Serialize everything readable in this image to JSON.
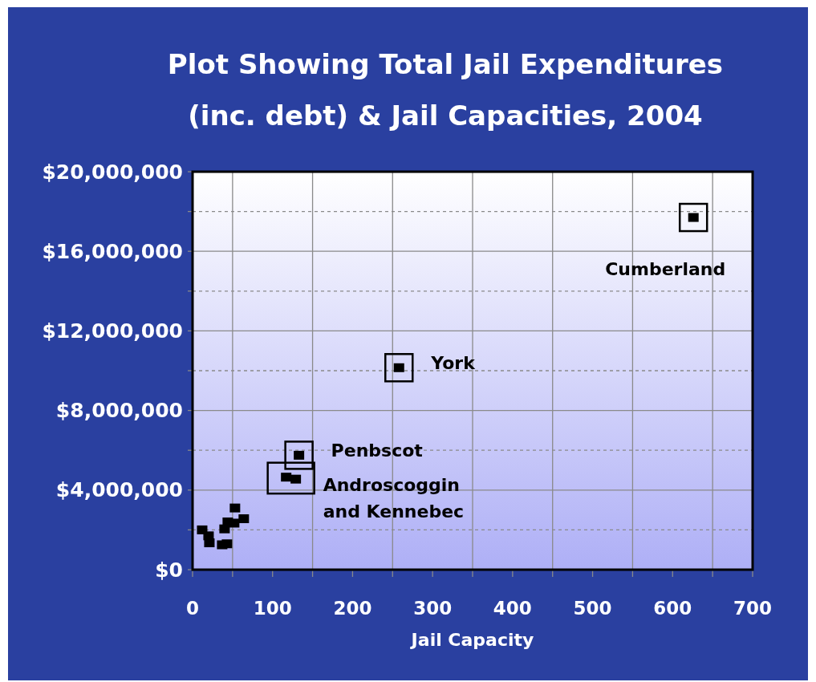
{
  "chart_data": {
    "type": "scatter",
    "title": "Plot Showing Total Jail Expenditures\n(inc. debt) & Jail Capacities, 2004",
    "xlabel": "Jail Capacity",
    "x": [
      12,
      20,
      21,
      37,
      40,
      43,
      44,
      52,
      53,
      64,
      117,
      129,
      133,
      258,
      626
    ],
    "values": [
      2000000,
      1700000,
      1350000,
      1250000,
      2050000,
      1300000,
      2400000,
      2340000,
      3100000,
      2560000,
      4650000,
      4550000,
      5750000,
      10150000,
      17700000
    ],
    "color": "#000000",
    "marker": "square",
    "xlim": [
      0,
      700
    ],
    "xticks": [
      0,
      {
        "value": 50,
        "label": null
      },
      100,
      {
        "value": 150,
        "label": null
      },
      200,
      {
        "value": 250,
        "label": null
      },
      300,
      {
        "value": 350,
        "label": null
      },
      400,
      {
        "value": 450,
        "label": null
      },
      500,
      {
        "value": 550,
        "label": null
      },
      600,
      {
        "value": 650,
        "label": null
      },
      700
    ],
    "ylim": [
      0,
      20000000
    ],
    "yticks": [
      {
        "value": 0,
        "label": "$0"
      },
      {
        "value": 2000000,
        "label": null
      },
      {
        "value": 4000000,
        "label": "$4,000,000"
      },
      {
        "value": 6000000,
        "label": null
      },
      {
        "value": 8000000,
        "label": "$8,000,000"
      },
      {
        "value": 10000000,
        "label": null
      },
      {
        "value": 12000000,
        "label": "$12,000,000"
      },
      {
        "value": 14000000,
        "label": null
      },
      {
        "value": 16000000,
        "label": "$16,000,000"
      },
      {
        "value": 18000000,
        "label": null
      },
      {
        "value": 20000000,
        "label": "$20,000,000"
      }
    ],
    "grid": true,
    "annotations": [
      {
        "text": "Cumberland",
        "x": 626,
        "y": 17700000
      },
      {
        "text": "York",
        "x": 258,
        "y": 10150000
      },
      {
        "text": "Penbscot",
        "x": 133,
        "y": 5750000
      },
      {
        "text": "Androscoggin\nand Kennebec",
        "x": 123,
        "y": 4600000
      }
    ]
  }
}
